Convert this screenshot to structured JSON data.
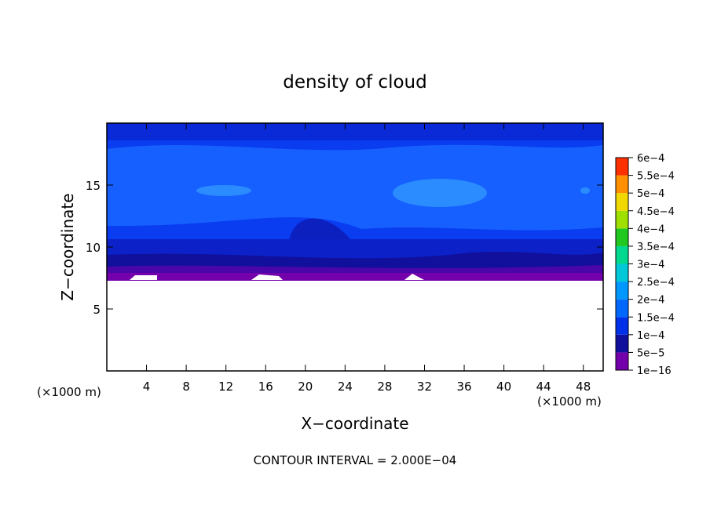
{
  "chart_data": {
    "type": "contour",
    "title": "density of cloud",
    "x_label": "X−coordinate",
    "y_label": "Z−coordinate",
    "x_unit_labels": [
      "(×1000 m)",
      "(×1000 m)"
    ],
    "annotation": "CONTOUR INTERVAL = 2.000E−04",
    "xlim": [
      0,
      50
    ],
    "ylim": [
      0,
      20
    ],
    "xticks": [
      4,
      8,
      12,
      16,
      20,
      24,
      28,
      32,
      36,
      40,
      44,
      48
    ],
    "yticks": [
      5,
      10,
      15
    ],
    "colorbar": {
      "levels": [
        {
          "value": 1e-16,
          "label": "1e−16"
        },
        {
          "value": 5e-05,
          "label": "5e−5"
        },
        {
          "value": 0.0001,
          "label": "1e−4"
        },
        {
          "value": 0.00015,
          "label": "1.5e−4"
        },
        {
          "value": 0.0002,
          "label": "2e−4"
        },
        {
          "value": 0.00025,
          "label": "2.5e−4"
        },
        {
          "value": 0.0003,
          "label": "3e−4"
        },
        {
          "value": 0.00035,
          "label": "3.5e−4"
        },
        {
          "value": 0.0004,
          "label": "4e−4"
        },
        {
          "value": 0.00045,
          "label": "4.5e−4"
        },
        {
          "value": 0.0005,
          "label": "5e−4"
        },
        {
          "value": 0.00055,
          "label": "5.5e−4"
        },
        {
          "value": 0.0006,
          "label": "6e−4"
        }
      ],
      "colors": [
        "#7400ac",
        "#10109c",
        "#0030e8",
        "#0068ff",
        "#0098ff",
        "#00c8d8",
        "#00d890",
        "#20c820",
        "#a0e000",
        "#f0d800",
        "#ff9000",
        "#ff3000",
        "#ff8888"
      ]
    }
  }
}
